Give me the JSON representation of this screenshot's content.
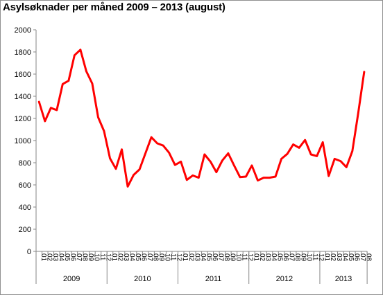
{
  "chart_data": {
    "type": "line",
    "title": "Asylsøknader per måned 2009 – 2013 (august)",
    "xlabel": "",
    "ylabel": "",
    "ylim": [
      0,
      2000
    ],
    "yticks": [
      "0",
      "200",
      "400",
      "600",
      "800",
      "1000",
      "1200",
      "1400",
      "1600",
      "1800",
      "2000"
    ],
    "grid": false,
    "legend": "none",
    "line_color": "#ff0000",
    "groups": [
      {
        "year": "2009",
        "months": [
          "01",
          "02",
          "03",
          "04",
          "05",
          "06",
          "07",
          "08",
          "09",
          "10",
          "11",
          "12"
        ]
      },
      {
        "year": "2010",
        "months": [
          "01",
          "02",
          "03",
          "04",
          "05",
          "06",
          "07",
          "08",
          "09",
          "10",
          "11",
          "12"
        ]
      },
      {
        "year": "2011",
        "months": [
          "01",
          "02",
          "03",
          "04",
          "05",
          "06",
          "07",
          "08",
          "09",
          "10",
          "11",
          "12"
        ]
      },
      {
        "year": "2012",
        "months": [
          "01",
          "02",
          "03",
          "04",
          "05",
          "06",
          "07",
          "08",
          "09",
          "10",
          "11",
          "12"
        ]
      },
      {
        "year": "2013",
        "months": [
          "01",
          "02",
          "03",
          "04",
          "05",
          "06",
          "07",
          "08"
        ]
      }
    ],
    "values": [
      1350,
      1175,
      1295,
      1275,
      1510,
      1540,
      1770,
      1820,
      1625,
      1515,
      1210,
      1085,
      840,
      745,
      920,
      585,
      690,
      740,
      885,
      1030,
      975,
      955,
      890,
      780,
      810,
      645,
      685,
      665,
      875,
      810,
      715,
      820,
      885,
      775,
      670,
      675,
      775,
      640,
      665,
      665,
      675,
      835,
      880,
      965,
      935,
      1005,
      875,
      860,
      985,
      680,
      835,
      815,
      760,
      905,
      1250,
      1620
    ]
  }
}
